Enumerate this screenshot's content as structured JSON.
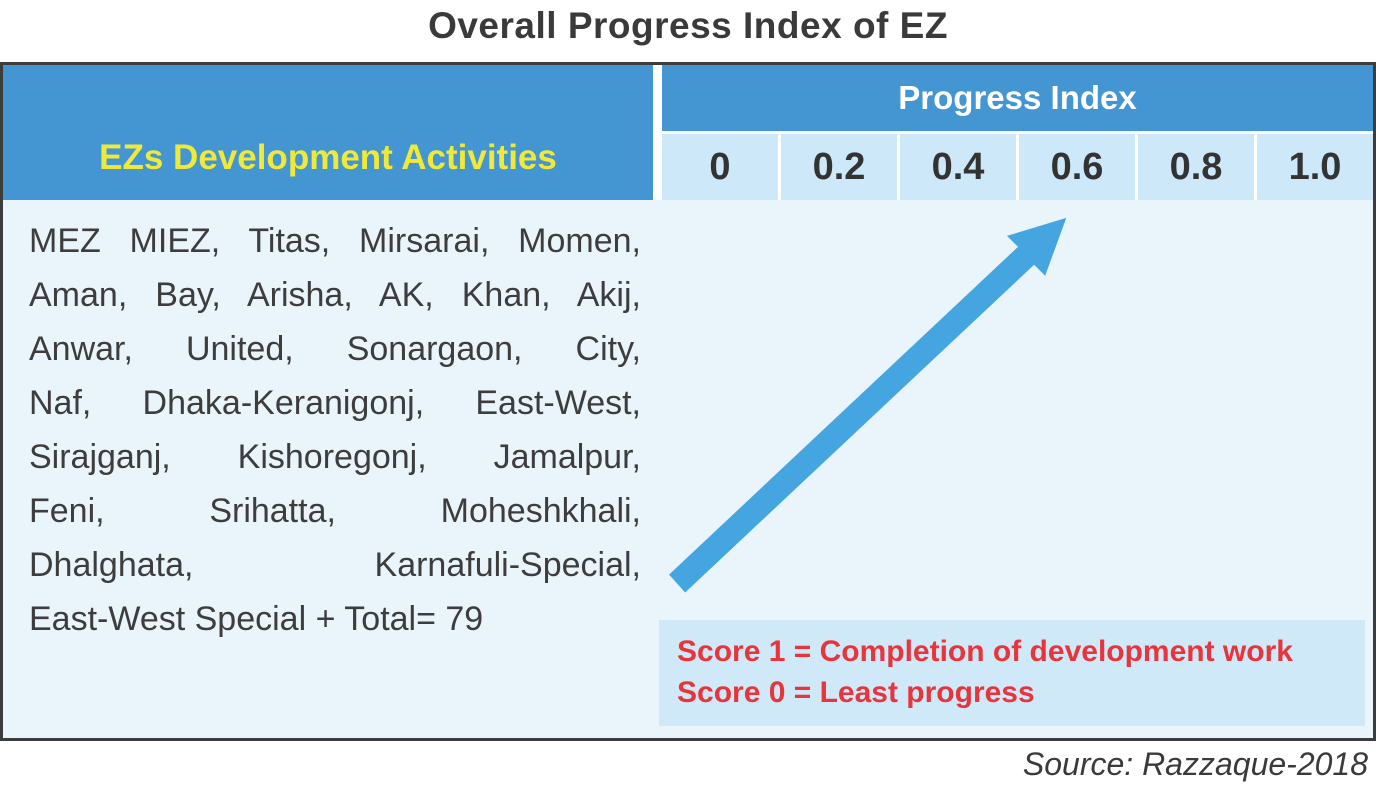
{
  "title": "Overall Progress Index of EZ",
  "table": {
    "left_header": "EZs Development Activities",
    "right_header": "Progress Index",
    "scale_values": [
      "0",
      "0.2",
      "0.4",
      "0.6",
      "0.8",
      "1.0"
    ],
    "activities_lines": [
      "MEZ MIEZ, Titas, Mirsarai, Momen,",
      "Aman, Bay, Arisha, AK, Khan, Akij,",
      "Anwar, United, Sonargaon, City,",
      "Naf, Dhaka-Keranigonj, East-West,",
      "Sirajganj, Kishoregonj, Jamalpur,",
      "Feni, Srihatta, Moheshkhali,",
      "Dhalghata, Karnafuli-Special,",
      "East-West Special + Total= 79"
    ],
    "arrow": {
      "description": "upward progress arrow pointing toward scale value 0.6",
      "points_to_value": "0.6"
    },
    "legend_lines": [
      "Score 1 = Completion of development work",
      "Score 0 = Least progress"
    ]
  },
  "source": "Source: Razzaque-2018",
  "colors": {
    "header_blue": "#4496D2",
    "header_yellow": "#F0E93A",
    "scale_bg": "#CDE8F8",
    "body_bg": "#EAF4FB",
    "arrow_blue": "#44A5E1",
    "legend_bg": "#CFE9F8",
    "legend_red": "#E8343C"
  }
}
